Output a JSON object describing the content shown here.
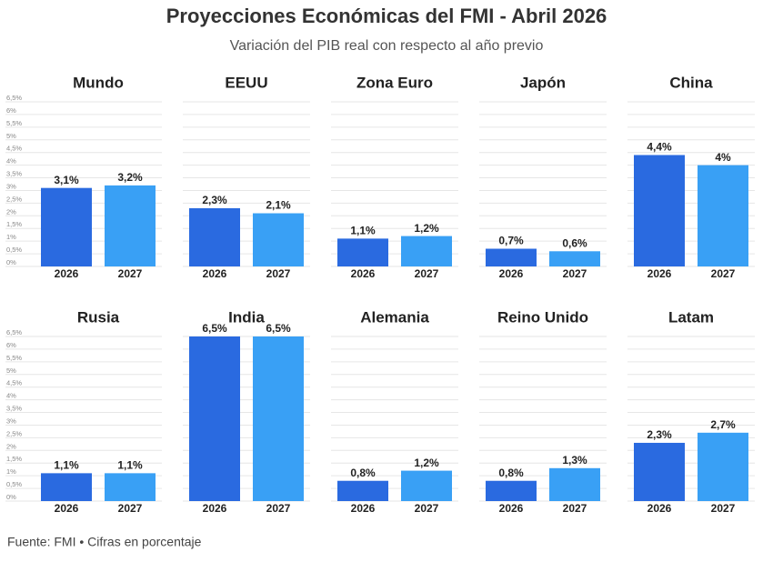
{
  "title": "Proyecciones Económicas del FMI - Abril 2026",
  "subtitle": "Variación del PIB real con respecto al año previo",
  "source": "Fuente: FMI • Cifras en porcentaje",
  "chart_data": [
    {
      "type": "bar",
      "title": "Mundo",
      "categories": [
        "2026",
        "2027"
      ],
      "values": [
        3.1,
        3.2
      ],
      "value_labels": [
        "3,1%",
        "3,2%"
      ],
      "colors": [
        "#2a6ae0",
        "#39a0f5"
      ],
      "ylim": [
        0,
        6.5
      ],
      "grid": true,
      "yticks": [
        {
          "value": 0,
          "label": "0%"
        },
        {
          "value": 0.5,
          "label": "0,5%"
        },
        {
          "value": 1,
          "label": "1%"
        },
        {
          "value": 1.5,
          "label": "1,5%"
        },
        {
          "value": 2,
          "label": "2%"
        },
        {
          "value": 2.5,
          "label": "2,5%"
        },
        {
          "value": 3,
          "label": "3%"
        },
        {
          "value": 3.5,
          "label": "3,5%"
        },
        {
          "value": 4,
          "label": "4%"
        },
        {
          "value": 4.5,
          "label": "4,5%"
        },
        {
          "value": 5,
          "label": "5%"
        },
        {
          "value": 5.5,
          "label": "5,5%"
        },
        {
          "value": 6,
          "label": "6%"
        },
        {
          "value": 6.5,
          "label": "6,5%"
        }
      ]
    },
    {
      "type": "bar",
      "title": "EEUU",
      "categories": [
        "2026",
        "2027"
      ],
      "values": [
        2.3,
        2.1
      ],
      "value_labels": [
        "2,3%",
        "2,1%"
      ],
      "colors": [
        "#2a6ae0",
        "#39a0f5"
      ],
      "ylim": [
        0,
        6.5
      ],
      "grid": true,
      "yticks": [
        0,
        0.5,
        1,
        1.5,
        2,
        2.5,
        3,
        3.5,
        4,
        4.5,
        5,
        5.5,
        6,
        6.5
      ]
    },
    {
      "type": "bar",
      "title": "Zona Euro",
      "categories": [
        "2026",
        "2027"
      ],
      "values": [
        1.1,
        1.2
      ],
      "value_labels": [
        "1,1%",
        "1,2%"
      ],
      "colors": [
        "#2a6ae0",
        "#39a0f5"
      ],
      "ylim": [
        0,
        6.5
      ],
      "grid": true,
      "yticks": [
        0,
        0.5,
        1,
        1.5,
        2,
        2.5,
        3,
        3.5,
        4,
        4.5,
        5,
        5.5,
        6,
        6.5
      ]
    },
    {
      "type": "bar",
      "title": "Japón",
      "categories": [
        "2026",
        "2027"
      ],
      "values": [
        0.7,
        0.6
      ],
      "value_labels": [
        "0,7%",
        "0,6%"
      ],
      "colors": [
        "#2a6ae0",
        "#39a0f5"
      ],
      "ylim": [
        0,
        6.5
      ],
      "grid": true,
      "yticks": [
        0,
        0.5,
        1,
        1.5,
        2,
        2.5,
        3,
        3.5,
        4,
        4.5,
        5,
        5.5,
        6,
        6.5
      ]
    },
    {
      "type": "bar",
      "title": "China",
      "categories": [
        "2026",
        "2027"
      ],
      "values": [
        4.4,
        4
      ],
      "value_labels": [
        "4,4%",
        "4%"
      ],
      "colors": [
        "#2a6ae0",
        "#39a0f5"
      ],
      "ylim": [
        0,
        6.5
      ],
      "grid": true,
      "yticks": [
        0,
        0.5,
        1,
        1.5,
        2,
        2.5,
        3,
        3.5,
        4,
        4.5,
        5,
        5.5,
        6,
        6.5
      ]
    },
    {
      "type": "bar",
      "title": "Rusia",
      "categories": [
        "2026",
        "2027"
      ],
      "values": [
        1.1,
        1.1
      ],
      "value_labels": [
        "1,1%",
        "1,1%"
      ],
      "colors": [
        "#2a6ae0",
        "#39a0f5"
      ],
      "ylim": [
        0,
        6.5
      ],
      "grid": true,
      "yticks": [
        {
          "value": 0,
          "label": "0%"
        },
        {
          "value": 0.5,
          "label": "0,5%"
        },
        {
          "value": 1,
          "label": "1%"
        },
        {
          "value": 1.5,
          "label": "1,5%"
        },
        {
          "value": 2,
          "label": "2%"
        },
        {
          "value": 2.5,
          "label": "2,5%"
        },
        {
          "value": 3,
          "label": "3%"
        },
        {
          "value": 3.5,
          "label": "3,5%"
        },
        {
          "value": 4,
          "label": "4%"
        },
        {
          "value": 4.5,
          "label": "4,5%"
        },
        {
          "value": 5,
          "label": "5%"
        },
        {
          "value": 5.5,
          "label": "5,5%"
        },
        {
          "value": 6,
          "label": "6%"
        },
        {
          "value": 6.5,
          "label": "6,5%"
        }
      ]
    },
    {
      "type": "bar",
      "title": "India",
      "categories": [
        "2026",
        "2027"
      ],
      "values": [
        6.5,
        6.5
      ],
      "value_labels": [
        "6,5%",
        "6,5%"
      ],
      "colors": [
        "#2a6ae0",
        "#39a0f5"
      ],
      "ylim": [
        0,
        6.5
      ],
      "grid": true,
      "yticks": [
        0,
        0.5,
        1,
        1.5,
        2,
        2.5,
        3,
        3.5,
        4,
        4.5,
        5,
        5.5,
        6,
        6.5
      ]
    },
    {
      "type": "bar",
      "title": "Alemania",
      "categories": [
        "2026",
        "2027"
      ],
      "values": [
        0.8,
        1.2
      ],
      "value_labels": [
        "0,8%",
        "1,2%"
      ],
      "colors": [
        "#2a6ae0",
        "#39a0f5"
      ],
      "ylim": [
        0,
        6.5
      ],
      "grid": true,
      "yticks": [
        0,
        0.5,
        1,
        1.5,
        2,
        2.5,
        3,
        3.5,
        4,
        4.5,
        5,
        5.5,
        6,
        6.5
      ]
    },
    {
      "type": "bar",
      "title": "Reino Unido",
      "categories": [
        "2026",
        "2027"
      ],
      "values": [
        0.8,
        1.3
      ],
      "value_labels": [
        "0,8%",
        "1,3%"
      ],
      "colors": [
        "#2a6ae0",
        "#39a0f5"
      ],
      "ylim": [
        0,
        6.5
      ],
      "grid": true,
      "yticks": [
        0,
        0.5,
        1,
        1.5,
        2,
        2.5,
        3,
        3.5,
        4,
        4.5,
        5,
        5.5,
        6,
        6.5
      ]
    },
    {
      "type": "bar",
      "title": "Latam",
      "categories": [
        "2026",
        "2027"
      ],
      "values": [
        2.3,
        2.7
      ],
      "value_labels": [
        "2,3%",
        "2,7%"
      ],
      "colors": [
        "#2a6ae0",
        "#39a0f5"
      ],
      "ylim": [
        0,
        6.5
      ],
      "grid": true,
      "yticks": [
        0,
        0.5,
        1,
        1.5,
        2,
        2.5,
        3,
        3.5,
        4,
        4.5,
        5,
        5.5,
        6,
        6.5
      ]
    }
  ]
}
